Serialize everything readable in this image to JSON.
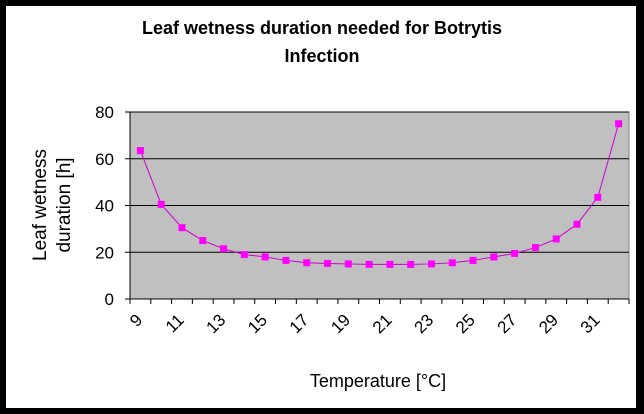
{
  "chart_data": {
    "type": "line",
    "title": "Leaf wetness duration needed for Botrytis Infection",
    "title_lines": [
      "Leaf wetness duration needed for Botrytis",
      "Infection"
    ],
    "xlabel": "Temperature [°C]",
    "ylabel": "Leaf wetness duration [h]",
    "ylabel_lines": [
      "Leaf wetness",
      "duration [h]"
    ],
    "ylim": [
      0,
      80
    ],
    "yticks": [
      0,
      20,
      40,
      60,
      80
    ],
    "x": [
      9,
      10,
      11,
      12,
      13,
      14,
      15,
      16,
      17,
      18,
      19,
      20,
      21,
      22,
      23,
      24,
      25,
      26,
      27,
      28,
      29,
      30,
      31,
      32
    ],
    "xtick_labels": [
      "9",
      "11",
      "13",
      "15",
      "17",
      "19",
      "21",
      "23",
      "25",
      "27",
      "29",
      "31"
    ],
    "series": [
      {
        "name": "Leaf wetness duration",
        "color": "#ff00ff",
        "marker": "square",
        "values": [
          63.5,
          40.5,
          30.5,
          25,
          21.5,
          19,
          18,
          16.5,
          15.5,
          15.2,
          15,
          14.8,
          14.8,
          14.8,
          15,
          15.5,
          16.5,
          18,
          19.5,
          22,
          25.7,
          32,
          43.5,
          75
        ]
      }
    ],
    "grid": true,
    "legend": "none",
    "plot_background": "#c0c0c0"
  }
}
